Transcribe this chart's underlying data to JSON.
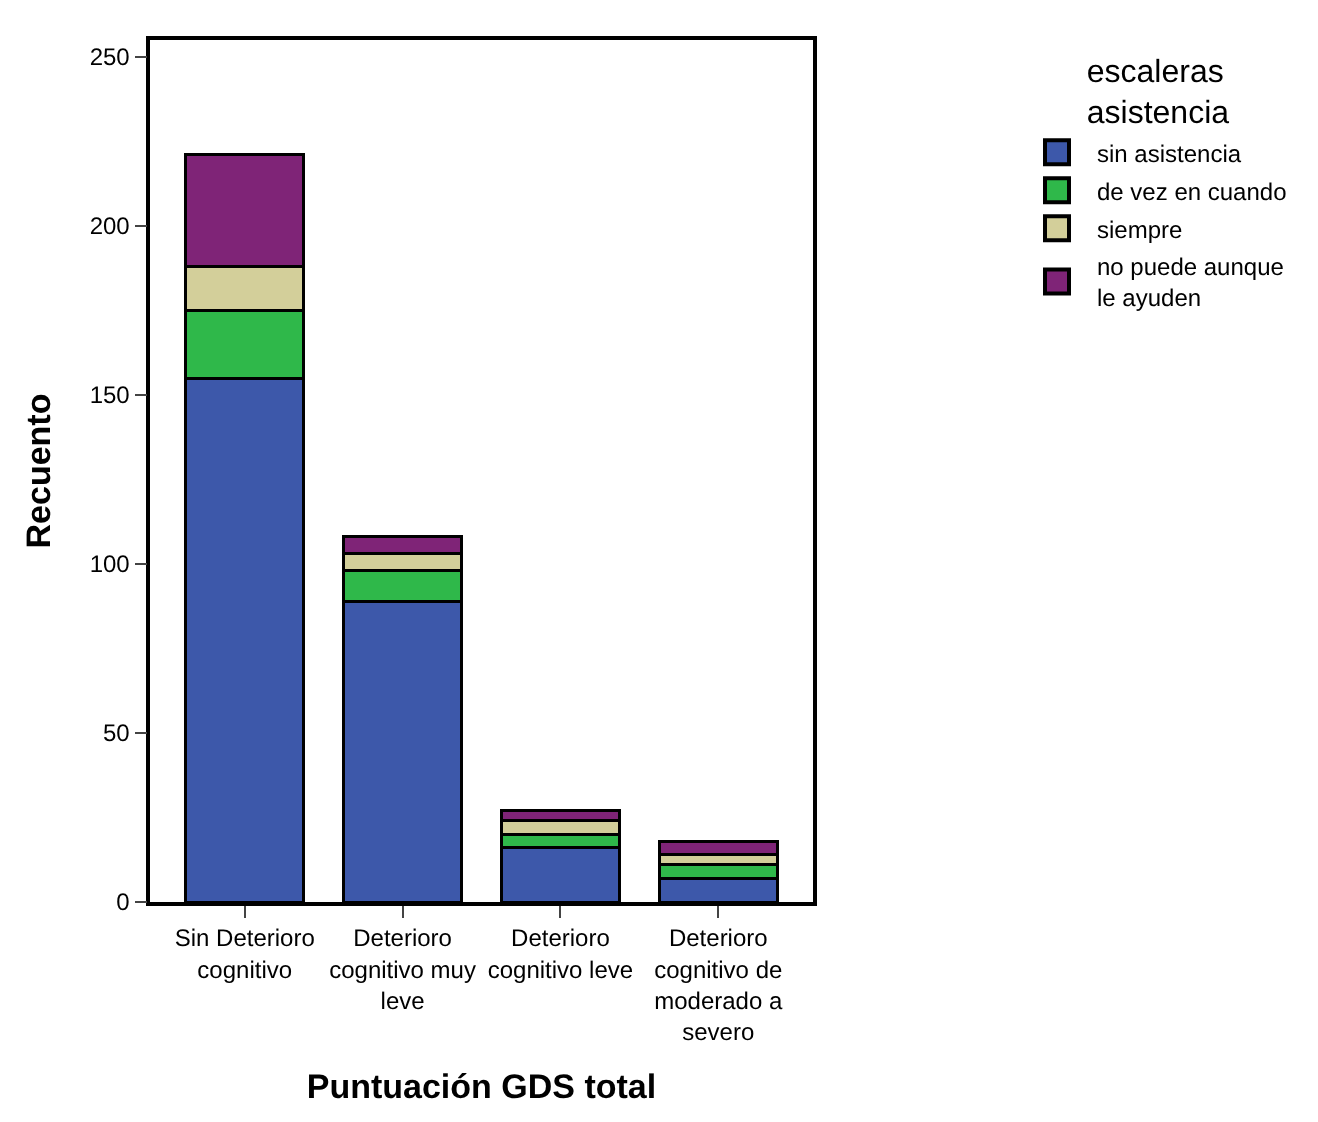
{
  "chart_data": {
    "type": "bar",
    "stacked": true,
    "xlabel": "Puntuación GDS total",
    "ylabel": "Recuento",
    "legend_title": "escaleras asistencia",
    "legend": "right",
    "categories": [
      "Sin Deterioro cognitivo",
      "Deterioro cognitivo muy leve",
      "Deterioro cognitivo leve",
      "Deterioro cognitivo de moderado a severo"
    ],
    "series": [
      {
        "name": "sin asistencia",
        "color": "#3d58aa",
        "values": [
          155,
          89,
          16,
          7
        ]
      },
      {
        "name": "de vez en cuando",
        "color": "#2fb84a",
        "values": [
          20,
          9,
          4,
          4
        ]
      },
      {
        "name": "siempre",
        "color": "#d3cf9a",
        "values": [
          13,
          5,
          4,
          3
        ]
      },
      {
        "name": "no puede aunque le ayuden",
        "color": "#7f2477",
        "values": [
          33,
          5,
          3,
          4
        ]
      }
    ],
    "ylim": [
      0,
      255
    ],
    "yticks": [
      0,
      50,
      100,
      150,
      200,
      250
    ]
  }
}
